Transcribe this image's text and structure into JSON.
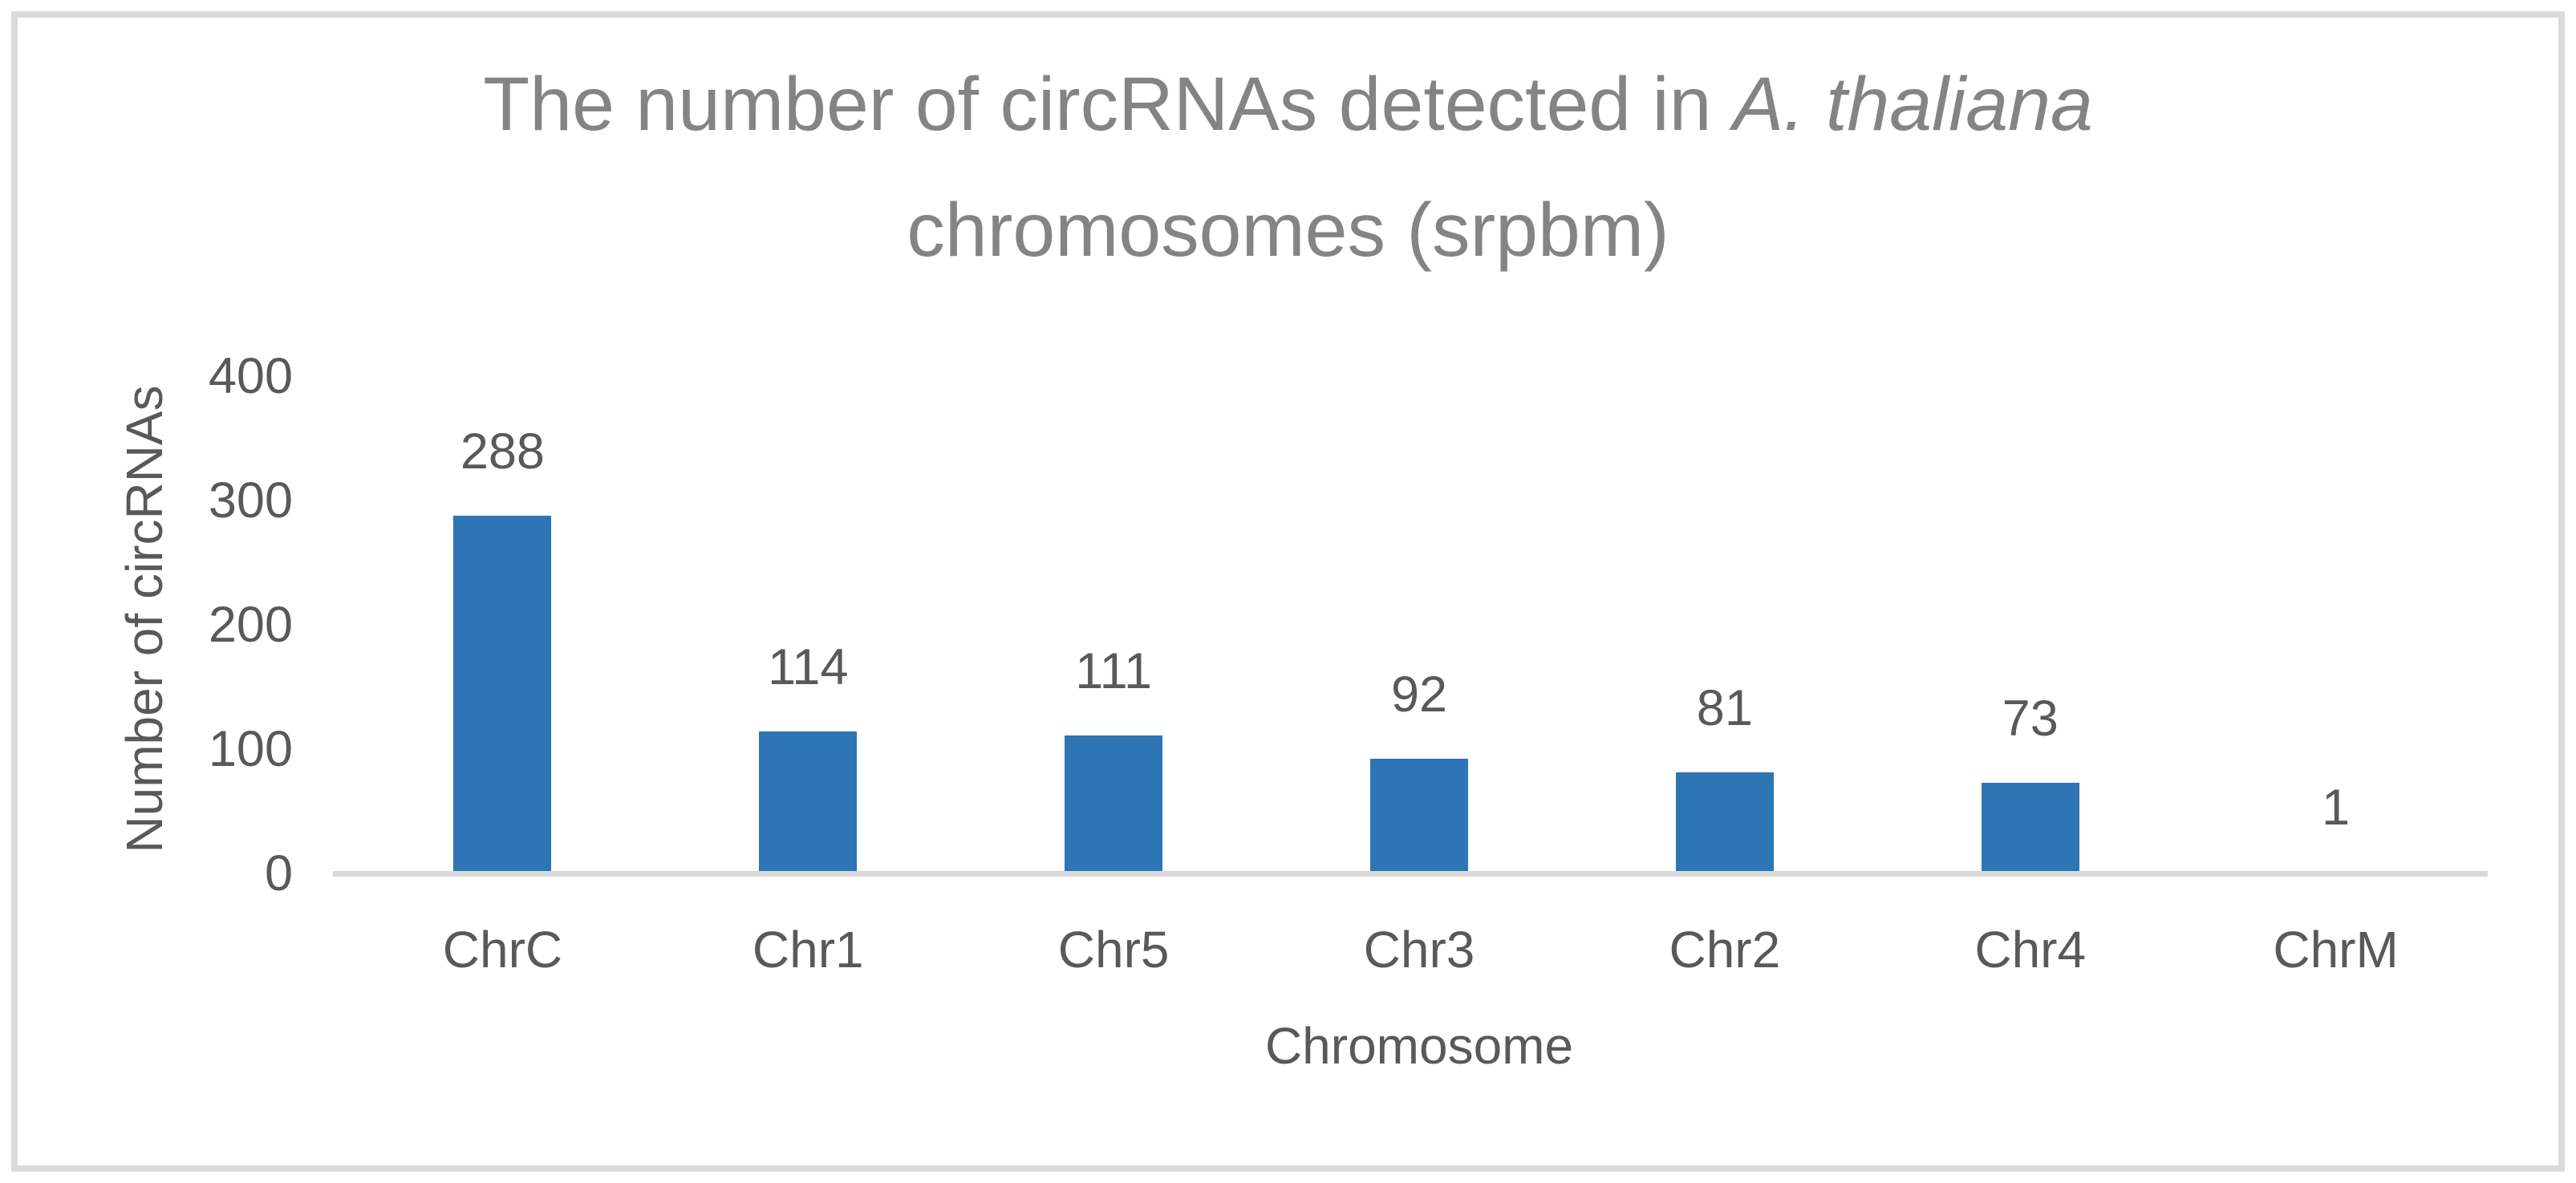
{
  "window": {
    "background": "#FFFFFF",
    "border_color": "#DBDBDB"
  },
  "chart_data": {
    "type": "bar",
    "title": "The number of circRNAs detected in A. thaliana chromosomes (srpbm)",
    "title_line1_regular": "The number of circRNAs detected in ",
    "title_line1_italic": "A. thaliana",
    "title_line2": "chromosomes (srpbm)",
    "categories": [
      "ChrC",
      "Chr1",
      "Chr5",
      "Chr3",
      "Chr2",
      "Chr4",
      "ChrM"
    ],
    "values": [
      288,
      114,
      111,
      92,
      81,
      73,
      1
    ],
    "xlabel": "Chromosome",
    "ylabel": "Number of circRNAs",
    "ylim": [
      0,
      400
    ],
    "yticks": [
      0,
      100,
      200,
      300,
      400
    ],
    "grid": false,
    "legend": false,
    "data_labels": true,
    "bar_color": "#2E75B6",
    "axis_line_color": "#D9D9D9",
    "title_color": "#848484",
    "text_color": "#595959"
  }
}
